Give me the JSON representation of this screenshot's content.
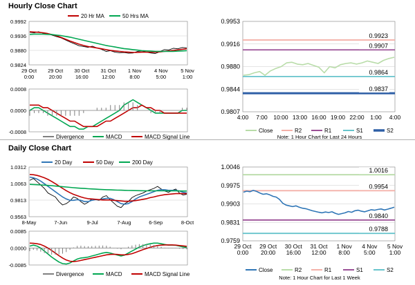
{
  "sections": [
    {
      "title": "Hourly Close Chart"
    },
    {
      "title": "Daily Close Chart"
    }
  ],
  "chart_data": [
    {
      "id": "hourly-price",
      "type": "line",
      "ylim": [
        0.9824,
        0.9992
      ],
      "y_ticks": [
        "0.9992",
        "0.9936",
        "0.9880",
        "0.9824"
      ],
      "x_ticks": [
        "29 Oct\n0:00",
        "29 Oct\n20:00",
        "30 Oct\n16:00",
        "31 Oct\n12:00",
        "1 Nov\n8:00",
        "4 Nov\n5:00",
        "5 Nov\n1:00"
      ],
      "legend": [
        "20 Hr MA",
        "50 Hrs MA"
      ],
      "colors": {
        "price": "#000000",
        "ma_short": "#c00000",
        "ma_long": "#00a651"
      },
      "series": [
        {
          "key": "price",
          "values": [
            0.995,
            0.9948,
            0.9952,
            0.9946,
            0.9944,
            0.9939,
            0.9933,
            0.9928,
            0.992,
            0.9912,
            0.9905,
            0.9898,
            0.9895,
            0.9892,
            0.9896,
            0.9889,
            0.9884,
            0.9876,
            0.9879,
            0.9873,
            0.9871,
            0.9872,
            0.9869,
            0.987,
            0.9876,
            0.9878,
            0.9873,
            0.987,
            0.9868,
            0.9875,
            0.9883,
            0.9882,
            0.9888,
            0.9886,
            0.9891,
            0.989
          ]
        },
        {
          "name": "20 Hr MA",
          "key": "ma_short",
          "values": [
            0.9952,
            0.9951,
            0.995,
            0.9948,
            0.9945,
            0.9941,
            0.9936,
            0.993,
            0.9923,
            0.9916,
            0.991,
            0.9904,
            0.9899,
            0.9895,
            0.9892,
            0.9889,
            0.9886,
            0.9883,
            0.988,
            0.9878,
            0.9876,
            0.9874,
            0.9873,
            0.9872,
            0.9872,
            0.9873,
            0.9873,
            0.9873,
            0.9873,
            0.9874,
            0.9876,
            0.9878,
            0.988,
            0.9882,
            0.9884,
            0.9886
          ]
        },
        {
          "name": "50 Hrs MA",
          "key": "ma_long",
          "values": [
            0.9942,
            0.9943,
            0.9943,
            0.9943,
            0.9942,
            0.9941,
            0.9939,
            0.9937,
            0.9934,
            0.9931,
            0.9927,
            0.9923,
            0.9919,
            0.9915,
            0.9911,
            0.9907,
            0.9903,
            0.9899,
            0.9896,
            0.9893,
            0.989,
            0.9887,
            0.9885,
            0.9883,
            0.9881,
            0.9879,
            0.9878,
            0.9877,
            0.9876,
            0.9876,
            0.9876,
            0.9876,
            0.9876,
            0.9877,
            0.9878,
            0.9879
          ]
        }
      ]
    },
    {
      "id": "hourly-macd",
      "type": "line",
      "ylim": [
        -0.0008,
        0.0008
      ],
      "y_ticks": [
        "0.0008",
        "0.0000",
        "-0.0008"
      ],
      "legend": [
        "Divergence",
        "MACD",
        "MACD Signal Line"
      ],
      "colors": {
        "divergence": "#7f7f7f",
        "macd": "#00a651",
        "signal": "#c00000"
      },
      "series": [
        {
          "name": "MACD",
          "key": "macd",
          "values": [
            0.0,
            0.0001,
            0.0001,
            0.0,
            -0.0001,
            -0.0002,
            -0.0003,
            -0.0004,
            -0.0005,
            -0.0006,
            -0.0006,
            -0.0007,
            -0.0007,
            -0.0006,
            -0.0006,
            -0.0005,
            -0.0004,
            -0.0003,
            -0.0002,
            -0.0001,
            0.0,
            0.0002,
            0.0003,
            0.0004,
            0.0003,
            0.0002,
            0.0001,
            0.0,
            -0.0001,
            -0.0001,
            -0.0001,
            -0.0001,
            -0.0001,
            -0.0001,
            0.0,
            0.0
          ]
        },
        {
          "name": "MACD Signal Line",
          "key": "signal",
          "values": [
            0.0002,
            0.0002,
            0.0002,
            0.0001,
            0.0001,
            0.0,
            -0.0001,
            -0.0002,
            -0.0003,
            -0.0004,
            -0.0004,
            -0.0005,
            -0.0006,
            -0.0006,
            -0.0006,
            -0.0006,
            -0.0005,
            -0.0004,
            -0.0004,
            -0.0003,
            -0.0002,
            -0.0001,
            0.0,
            0.0001,
            0.0001,
            0.0002,
            0.0001,
            0.0001,
            0.0,
            0.0,
            -0.0001,
            -0.0001,
            -0.0001,
            -0.0001,
            -0.0001,
            -0.0001
          ]
        },
        {
          "name": "Divergence",
          "key": "divergence",
          "values": [
            -0.0002,
            -0.0001,
            -0.0001,
            -0.0001,
            -0.0002,
            -0.0002,
            -0.0002,
            -0.0002,
            -0.0002,
            -0.0002,
            -0.0002,
            -0.0002,
            -0.0001,
            0.0,
            0.0,
            0.0001,
            0.0001,
            0.0001,
            0.0002,
            0.0002,
            0.0002,
            0.0003,
            0.0003,
            0.0003,
            0.0002,
            0.0,
            0.0,
            -0.0001,
            -0.0001,
            -0.0001,
            0.0,
            0.0,
            0.0,
            0.0,
            0.0001,
            0.0001
          ]
        }
      ]
    },
    {
      "id": "hourly-levels",
      "type": "line",
      "ylim": [
        0.9807,
        0.9953
      ],
      "y_ticks": [
        "0.9953",
        "0.9916",
        "0.9880",
        "0.9844",
        "0.9807"
      ],
      "x_ticks": [
        "4:00",
        "7:00",
        "10:00",
        "13:00",
        "16:00",
        "19:00",
        "22:00",
        "1:00",
        "4:00"
      ],
      "legend": [
        "Close",
        "R2",
        "R1",
        "S1",
        "S2"
      ],
      "note": "Note: 1 Hour Chart for Last 24 Hours",
      "levels": [
        {
          "key": "R2",
          "value": 0.9923,
          "label": "0.9923",
          "color": "#f4b0a8"
        },
        {
          "key": "R1",
          "value": 0.9907,
          "label": "0.9907",
          "color": "#9b4f96"
        },
        {
          "key": "S1",
          "value": 0.9864,
          "label": "0.9864",
          "color": "#66c4cc"
        },
        {
          "key": "S2",
          "value": 0.9837,
          "label": "0.9837",
          "color": "#2e5fa6"
        }
      ],
      "colors": {
        "close": "#b8dca8"
      },
      "series": [
        {
          "name": "Close",
          "key": "close",
          "values": [
            0.9866,
            0.9867,
            0.987,
            0.9872,
            0.9866,
            0.9873,
            0.9877,
            0.988,
            0.9886,
            0.9887,
            0.9884,
            0.9883,
            0.9885,
            0.9882,
            0.9879,
            0.987,
            0.988,
            0.9878,
            0.9883,
            0.9885,
            0.9886,
            0.9884,
            0.9886,
            0.9889,
            0.9887,
            0.9885,
            0.989,
            0.9893,
            0.9895
          ]
        }
      ]
    },
    {
      "id": "daily-price",
      "type": "line",
      "ylim": [
        0.9563,
        1.0312
      ],
      "y_ticks": [
        "1.0312",
        "1.0063",
        "0.9813",
        "0.9563"
      ],
      "x_ticks": [
        "8-May",
        "7-Jun",
        "9-Jul",
        "7-Aug",
        "6-Sep",
        "8-Oct"
      ],
      "legend": [
        "20 Day",
        "50 Day",
        "200 Day"
      ],
      "colors": {
        "price": "#000000",
        "ma20": "#2e75b6",
        "ma50": "#c00000",
        "ma200": "#00a651"
      },
      "series": [
        {
          "key": "price",
          "values": [
            1.011,
            1.014,
            1.009,
            1.004,
            0.999,
            0.992,
            0.989,
            0.986,
            0.979,
            0.974,
            0.976,
            0.98,
            0.986,
            0.984,
            0.979,
            0.975,
            0.978,
            0.983,
            0.982,
            0.981,
            0.986,
            0.988,
            0.982,
            0.977,
            0.972,
            0.97,
            0.976,
            0.979,
            0.985,
            0.988,
            0.99,
            0.992,
            0.995,
            0.997,
            0.999,
            1.002,
            0.998,
            0.995,
            0.993,
            0.996,
            0.998,
            0.992,
            0.989,
            0.99
          ]
        },
        {
          "name": "20 Day",
          "key": "ma20",
          "values": [
            1.016,
            1.015,
            1.013,
            1.01,
            1.006,
            1.002,
            0.998,
            0.994,
            0.99,
            0.986,
            0.983,
            0.981,
            0.981,
            0.982,
            0.981,
            0.979,
            0.979,
            0.981,
            0.982,
            0.982,
            0.983,
            0.984,
            0.984,
            0.982,
            0.979,
            0.976,
            0.975,
            0.976,
            0.979,
            0.983,
            0.986,
            0.988,
            0.99,
            0.992,
            0.994,
            0.996,
            0.997,
            0.997,
            0.996,
            0.996,
            0.996,
            0.995,
            0.993,
            0.992
          ]
        },
        {
          "name": "50 Day",
          "key": "ma50",
          "values": [
            1.02,
            1.0195,
            1.0185,
            1.017,
            1.015,
            1.0125,
            1.0095,
            1.006,
            1.0025,
            0.999,
            0.9955,
            0.9925,
            0.99,
            0.988,
            0.986,
            0.9845,
            0.9835,
            0.983,
            0.9825,
            0.982,
            0.9815,
            0.9815,
            0.9815,
            0.981,
            0.9805,
            0.98,
            0.9795,
            0.9795,
            0.98,
            0.9805,
            0.9815,
            0.9825,
            0.9835,
            0.985,
            0.986,
            0.9875,
            0.9885,
            0.9895,
            0.99,
            0.9905,
            0.991,
            0.991,
            0.991,
            0.991
          ]
        },
        {
          "name": "200 Day",
          "key": "ma200",
          "values": [
            1.005,
            1.0048,
            1.0045,
            1.0042,
            1.0038,
            1.0034,
            1.003,
            1.0025,
            1.002,
            1.0015,
            1.001,
            1.0005,
            1.0,
            0.9996,
            0.9992,
            0.9988,
            0.9984,
            0.9981,
            0.9978,
            0.9975,
            0.9972,
            0.997,
            0.9968,
            0.9966,
            0.9964,
            0.9962,
            0.996,
            0.9958,
            0.9957,
            0.9956,
            0.9955,
            0.9954,
            0.9953,
            0.9953,
            0.9953,
            0.9953,
            0.9953,
            0.9953,
            0.9952,
            0.9952,
            0.9952,
            0.9951,
            0.995,
            0.995
          ]
        }
      ]
    },
    {
      "id": "daily-macd",
      "type": "line",
      "ylim": [
        -0.0085,
        0.0085
      ],
      "y_ticks": [
        "0.0085",
        "0.0000",
        "-0.0085"
      ],
      "legend": [
        "Divergence",
        "MACD",
        "MACD Signal Line"
      ],
      "colors": {
        "divergence": "#7f7f7f",
        "macd": "#00a651",
        "signal": "#c00000"
      },
      "series": [
        {
          "name": "MACD",
          "key": "macd",
          "values": [
            0.001,
            0.0015,
            0.001,
            0.0,
            -0.0015,
            -0.003,
            -0.0045,
            -0.0058,
            -0.007,
            -0.0078,
            -0.008,
            -0.0075,
            -0.0065,
            -0.0055,
            -0.005,
            -0.0048,
            -0.0045,
            -0.004,
            -0.0035,
            -0.003,
            -0.0025,
            -0.0022,
            -0.0025,
            -0.003,
            -0.0035,
            -0.004,
            -0.0035,
            -0.0025,
            -0.0015,
            -0.0005,
            0.0005,
            0.0012,
            0.0018,
            0.0022,
            0.0025,
            0.0025,
            0.0022,
            0.0018,
            0.0015,
            0.0015,
            0.0014,
            0.001,
            0.0006,
            0.0003
          ]
        },
        {
          "name": "MACD Signal Line",
          "key": "signal",
          "values": [
            0.0025,
            0.0024,
            0.0022,
            0.0018,
            0.001,
            0.0,
            -0.0012,
            -0.0025,
            -0.0038,
            -0.005,
            -0.006,
            -0.0066,
            -0.0068,
            -0.0066,
            -0.0062,
            -0.0058,
            -0.0054,
            -0.005,
            -0.0046,
            -0.0042,
            -0.0038,
            -0.0034,
            -0.0032,
            -0.0031,
            -0.0032,
            -0.0034,
            -0.0034,
            -0.0032,
            -0.0028,
            -0.0022,
            -0.0015,
            -0.0008,
            -0.0002,
            0.0004,
            0.0009,
            0.0013,
            0.0015,
            0.0016,
            0.0016,
            0.0016,
            0.0015,
            0.0013,
            0.0011,
            0.0009
          ]
        },
        {
          "name": "Divergence",
          "key": "divergence",
          "values": [
            -0.0015,
            -0.0009,
            -0.0012,
            -0.0018,
            -0.0025,
            -0.003,
            -0.0033,
            -0.0033,
            -0.0032,
            -0.0028,
            -0.002,
            -0.0009,
            0.0003,
            0.0011,
            0.0012,
            0.001,
            0.0009,
            0.001,
            0.0011,
            0.0012,
            0.0013,
            0.0012,
            0.0007,
            0.0001,
            -0.0003,
            -0.0006,
            -0.0001,
            0.0007,
            0.0013,
            0.0017,
            0.002,
            0.002,
            0.002,
            0.0018,
            0.0016,
            0.0012,
            0.0007,
            0.0002,
            -0.0001,
            -0.0001,
            -0.0001,
            -0.0003,
            -0.0005,
            -0.0006
          ]
        }
      ]
    },
    {
      "id": "daily-levels",
      "type": "line",
      "ylim": [
        0.9759,
        1.0046
      ],
      "y_ticks": [
        "1.0046",
        "0.9975",
        "0.9903",
        "0.9831",
        "0.9759"
      ],
      "x_ticks": [
        "29 Oct\n0:00",
        "29 Oct\n20:00",
        "30 Oct\n16:00",
        "31 Oct\n12:00",
        "1 Nov\n8:00",
        "4 Nov\n5:00",
        "5 Nov\n1:00"
      ],
      "legend": [
        "Close",
        "R2",
        "R1",
        "S1",
        "S2"
      ],
      "note": "Note: 1 Hour Chart for Last 1 Week",
      "levels": [
        {
          "key": "R2",
          "value": 1.0016,
          "label": "1.0016",
          "color": "#b8dca8"
        },
        {
          "key": "R1",
          "value": 0.9954,
          "label": "0.9954",
          "color": "#f4b0a8"
        },
        {
          "key": "S1",
          "value": 0.984,
          "label": "0.9840",
          "color": "#9b4f96"
        },
        {
          "key": "S2",
          "value": 0.9788,
          "label": "0.9788",
          "color": "#66c4cc"
        }
      ],
      "colors": {
        "close": "#2e75b6"
      },
      "series": [
        {
          "name": "Close",
          "key": "close",
          "values": [
            0.9948,
            0.9952,
            0.995,
            0.9955,
            0.9951,
            0.9945,
            0.994,
            0.9942,
            0.9938,
            0.9932,
            0.9929,
            0.992,
            0.9905,
            0.9898,
            0.9895,
            0.9892,
            0.9895,
            0.989,
            0.9886,
            0.9884,
            0.988,
            0.9876,
            0.9873,
            0.987,
            0.9868,
            0.9871,
            0.9869,
            0.9872,
            0.9866,
            0.9862,
            0.9865,
            0.9868,
            0.9873,
            0.987,
            0.9876,
            0.9878,
            0.9874,
            0.9872,
            0.9876,
            0.988,
            0.9878,
            0.9881,
            0.9883,
            0.9879,
            0.9882,
            0.9886,
            0.989
          ]
        }
      ]
    }
  ]
}
